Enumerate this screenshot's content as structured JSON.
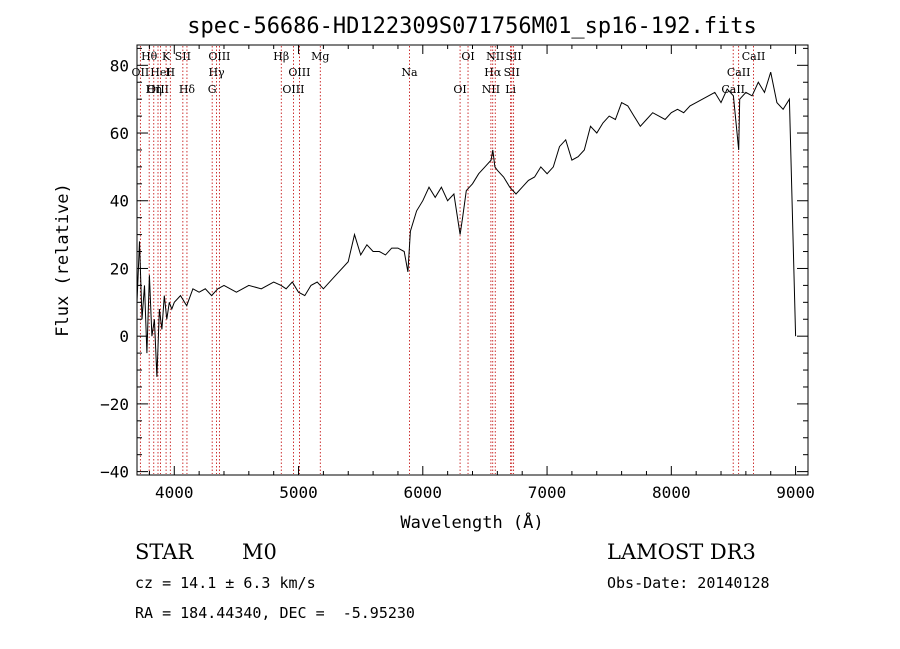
{
  "chart_data": {
    "type": "line",
    "title": "spec-56686-HD122309S071756M01_sp16-192.fits",
    "xlabel": "Wavelength (Å)",
    "ylabel": "Flux (relative)",
    "xlim": [
      3700,
      9100
    ],
    "ylim": [
      -41,
      86
    ],
    "xticks": [
      4000,
      5000,
      6000,
      7000,
      8000,
      9000
    ],
    "yticks": [
      -40,
      -20,
      0,
      20,
      40,
      60,
      80
    ],
    "series": [
      {
        "color": "#000000",
        "x": [
          3700,
          3720,
          3740,
          3760,
          3780,
          3800,
          3820,
          3840,
          3860,
          3880,
          3900,
          3920,
          3940,
          3960,
          3980,
          4000,
          4050,
          4100,
          4150,
          4200,
          4250,
          4300,
          4350,
          4400,
          4500,
          4600,
          4700,
          4800,
          4860,
          4900,
          4950,
          5000,
          5050,
          5100,
          5150,
          5200,
          5300,
          5400,
          5450,
          5500,
          5550,
          5600,
          5650,
          5700,
          5750,
          5800,
          5850,
          5880,
          5900,
          5950,
          6000,
          6050,
          6100,
          6150,
          6200,
          6250,
          6300,
          6320,
          6350,
          6400,
          6450,
          6500,
          6550,
          6563,
          6580,
          6600,
          6650,
          6700,
          6750,
          6800,
          6850,
          6900,
          6950,
          7000,
          7050,
          7100,
          7150,
          7200,
          7250,
          7300,
          7350,
          7400,
          7450,
          7500,
          7550,
          7600,
          7650,
          7700,
          7750,
          7800,
          7850,
          7900,
          7950,
          8000,
          8050,
          8100,
          8150,
          8200,
          8250,
          8300,
          8350,
          8400,
          8450,
          8500,
          8542,
          8550,
          8600,
          8650,
          8700,
          8750,
          8800,
          8850,
          8900,
          8950,
          9000
        ],
        "y": [
          10,
          28,
          5,
          15,
          -5,
          18,
          0,
          5,
          -12,
          8,
          2,
          12,
          5,
          10,
          8,
          10,
          12,
          9,
          14,
          13,
          14,
          12,
          14,
          15,
          13,
          15,
          14,
          16,
          15,
          14,
          16,
          13,
          12,
          15,
          16,
          14,
          18,
          22,
          30,
          24,
          27,
          25,
          25,
          24,
          26,
          26,
          25,
          19,
          31,
          37,
          40,
          44,
          41,
          44,
          40,
          42,
          30,
          35,
          43,
          45,
          48,
          50,
          52,
          55,
          50,
          49,
          47,
          44,
          42,
          44,
          46,
          47,
          50,
          48,
          50,
          56,
          58,
          52,
          53,
          55,
          62,
          60,
          63,
          65,
          64,
          69,
          68,
          65,
          62,
          64,
          66,
          65,
          64,
          66,
          67,
          66,
          68,
          69,
          70,
          71,
          72,
          69,
          73,
          71,
          55,
          70,
          72,
          71,
          75,
          72,
          78,
          69,
          67,
          70,
          0
        ]
      }
    ],
    "lines": [
      {
        "name": "Hθ",
        "x": 3798
      },
      {
        "name": "OII",
        "x": 3727
      },
      {
        "name": "OIII",
        "x": 3869
      },
      {
        "name": "K",
        "x": 3934
      },
      {
        "name": "HeI",
        "x": 3889
      },
      {
        "name": "Hη",
        "x": 3835
      },
      {
        "name": "SII",
        "x": 4069
      },
      {
        "name": "H",
        "x": 3968
      },
      {
        "name": "Hδ",
        "x": 4102
      },
      {
        "name": "OIII",
        "x": 4363
      },
      {
        "name": "Hγ",
        "x": 4340
      },
      {
        "name": "G",
        "x": 4305
      },
      {
        "name": "Hβ",
        "x": 4861
      },
      {
        "name": "OIII",
        "x": 5007
      },
      {
        "name": "OIII",
        "x": 4959
      },
      {
        "name": "Mg",
        "x": 5175
      },
      {
        "name": "Na",
        "x": 5893
      },
      {
        "name": "OI",
        "x": 6300
      },
      {
        "name": "OI",
        "x": 6364
      },
      {
        "name": "Hα",
        "x": 6563
      },
      {
        "name": "NII",
        "x": 6548
      },
      {
        "name": "NII",
        "x": 6583
      },
      {
        "name": "SII",
        "x": 6716
      },
      {
        "name": "Li",
        "x": 6707
      },
      {
        "name": "SII",
        "x": 6731
      },
      {
        "name": "CaII",
        "x": 8542
      },
      {
        "name": "CaII",
        "x": 8498
      },
      {
        "name": "CaII",
        "x": 8662
      }
    ]
  },
  "info": {
    "object_class": "STAR",
    "subclass": "M0",
    "survey": "LAMOST DR3",
    "cz_line": "cz = 14.1 ± 6.3 km/s",
    "obs_date_line": "Obs-Date: 20140128",
    "radec_line": "RA = 184.44340, DEC =  -5.95230"
  }
}
